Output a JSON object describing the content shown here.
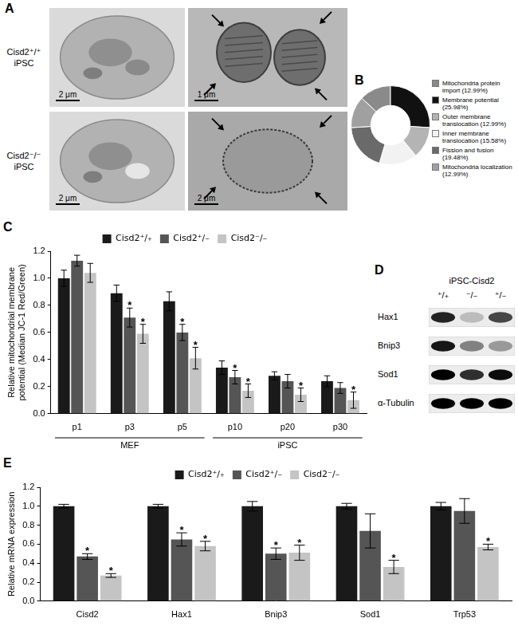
{
  "panels": {
    "A": {
      "letter": "A",
      "rows": [
        {
          "label": [
            "Cisd2⁺/⁺",
            "iPSC"
          ],
          "scale_bars": [
            "2 μm",
            "1 μm"
          ]
        },
        {
          "label": [
            "Cisd2⁻/⁻",
            "iPSC"
          ],
          "scale_bars": [
            "2 μm",
            "2 μm"
          ]
        }
      ]
    },
    "D": {
      "letter": "D",
      "title": "iPSC-Cisd2",
      "lanes": [
        "⁺/₊",
        "⁻/₋",
        "⁺/₋"
      ],
      "rows": [
        {
          "label": "Hax1",
          "intensities": [
            0.85,
            0.2,
            0.7
          ]
        },
        {
          "label": "Bnip3",
          "intensities": [
            0.9,
            0.45,
            0.35
          ]
        },
        {
          "label": "Sod1",
          "intensities": [
            1.0,
            0.8,
            0.95
          ]
        },
        {
          "label": "α-Tubulin",
          "intensities": [
            1.0,
            1.0,
            1.0
          ]
        }
      ]
    }
  },
  "chart_data": [
    {
      "type": "doughnut",
      "title": "B",
      "categories": [
        "Mitochondria protein import (12.99%)",
        "Membrane potential (25.98%)",
        "Outer membrane translocation (12.99%)",
        "Inner membrane translocation (15.58%)",
        "Fission and fusion (19.48%)",
        "Mitochondria localization (12.99%)"
      ],
      "values": [
        12.99,
        25.98,
        12.99,
        15.58,
        19.48,
        12.99
      ],
      "colors": [
        "#8a8a8a",
        "#111111",
        "#b4b4b4",
        "#f2f2f2",
        "#6a6a6a",
        "#a0a0a0"
      ],
      "legend": "right"
    },
    {
      "type": "bar",
      "title": "C",
      "categories": [
        "p1",
        "p3",
        "p5",
        "p10",
        "p20",
        "p30"
      ],
      "x_groups": [
        {
          "label": "MEF",
          "from": "p1",
          "to": "p5"
        },
        {
          "label": "iPSC",
          "from": "p10",
          "to": "p30"
        }
      ],
      "y_label": [
        "Relative mitochondrial membrane",
        "potential (Median JC-1 Red/Green)"
      ],
      "ylim": [
        0,
        1.2
      ],
      "yticks": [
        {
          "value": 0,
          "label": "0.0"
        },
        0.2,
        0.4,
        0.6,
        0.8,
        {
          "value": 1,
          "label": "1.0"
        },
        1.2
      ],
      "grid": false,
      "legend": "top",
      "series": [
        {
          "name": "Cisd2⁺/₊",
          "color": "#1a1a1a",
          "values": [
            1.0,
            0.89,
            0.83,
            0.34,
            0.28,
            0.24
          ],
          "errors": [
            0.06,
            0.06,
            0.07,
            0.05,
            0.03,
            0.04
          ],
          "annotations": [
            null,
            null,
            null,
            null,
            null,
            null
          ]
        },
        {
          "name": "Cisd2⁺/₋",
          "color": "#555555",
          "values": [
            1.13,
            0.71,
            0.6,
            0.27,
            0.24,
            0.19
          ],
          "errors": [
            0.04,
            0.07,
            0.06,
            0.05,
            0.05,
            0.04
          ],
          "annotations": [
            null,
            "*",
            "*",
            "*",
            null,
            null
          ]
        },
        {
          "name": "Cisd2⁻/₋",
          "color": "#c4c4c4",
          "values": [
            1.04,
            0.59,
            0.41,
            0.17,
            0.14,
            0.1
          ],
          "errors": [
            0.07,
            0.07,
            0.08,
            0.05,
            0.05,
            0.06
          ],
          "annotations": [
            null,
            "*",
            "*",
            "*",
            "*",
            "*"
          ]
        }
      ]
    },
    {
      "type": "bar",
      "title": "E",
      "categories": [
        "Cisd2",
        "Hax1",
        "Bnip3",
        "Sod1",
        "Trp53"
      ],
      "y_label": "Relative mRNA expression",
      "ylim": [
        0,
        1.2
      ],
      "yticks": [
        {
          "value": 0,
          "label": "0.0"
        },
        0.2,
        0.4,
        0.6,
        0.8,
        {
          "value": 1,
          "label": "1.0"
        },
        1.2
      ],
      "grid": false,
      "legend": "top",
      "series": [
        {
          "name": "Cisd2⁺/₊",
          "color": "#1a1a1a",
          "values": [
            1.0,
            1.0,
            1.0,
            1.0,
            1.0
          ],
          "errors": [
            0.02,
            0.02,
            0.05,
            0.03,
            0.04
          ],
          "annotations": [
            null,
            null,
            null,
            null,
            null
          ]
        },
        {
          "name": "Cisd2⁺/₋",
          "color": "#555555",
          "values": [
            0.47,
            0.65,
            0.5,
            0.74,
            0.95
          ],
          "errors": [
            0.03,
            0.07,
            0.06,
            0.18,
            0.13
          ],
          "annotations": [
            "*",
            "*",
            "*",
            null,
            null
          ]
        },
        {
          "name": "Cisd2⁻/₋",
          "color": "#c4c4c4",
          "values": [
            0.27,
            0.58,
            0.51,
            0.36,
            0.57
          ],
          "errors": [
            0.02,
            0.05,
            0.08,
            0.07,
            0.03
          ],
          "annotations": [
            "*",
            "*",
            "*",
            "*",
            "*"
          ]
        }
      ]
    }
  ]
}
